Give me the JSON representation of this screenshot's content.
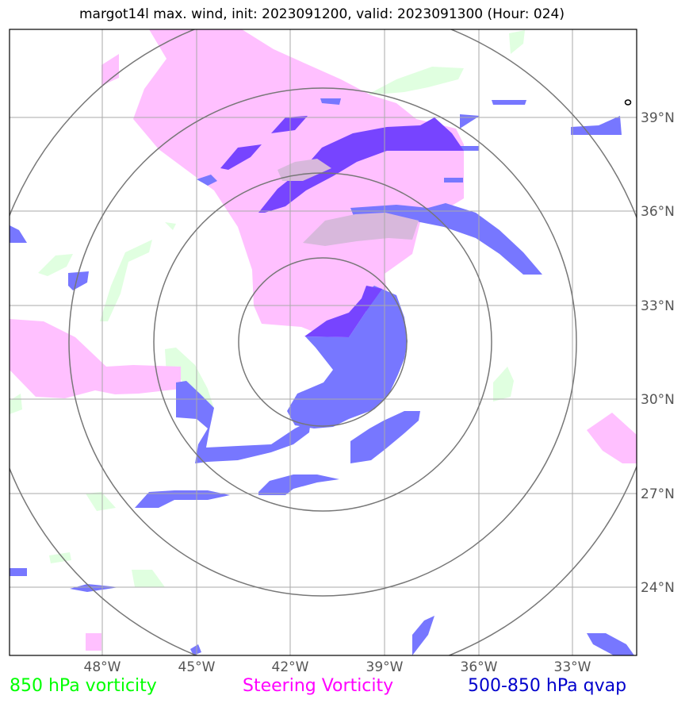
{
  "title": "margot14l max. wind, init: 2023091200, valid: 2023091300 (Hour: 024)",
  "map": {
    "lon_labels": [
      "48°W",
      "45°W",
      "42°W",
      "39°W",
      "36°W",
      "33°W"
    ],
    "lat_labels": [
      "39°N",
      "36°N",
      "33°N",
      "30°N",
      "27°N",
      "24°N"
    ]
  },
  "legend": [
    {
      "label": "850 hPa vorticity",
      "color": "#00ff00"
    },
    {
      "label": "Steering Vorticity",
      "color": "#ff00ff"
    },
    {
      "label": "500-850 hPa qvap",
      "color": "#0000cc"
    }
  ],
  "colors": {
    "vorticity_850_fill": "#e0ffe0",
    "steering_vorticity_fill": "#ffc0ff",
    "qvap_fill": "#7777ff",
    "qvap_dark_fill": "#7744ff",
    "range_rings": "#777777",
    "gridlines": "#aaaaaa"
  }
}
